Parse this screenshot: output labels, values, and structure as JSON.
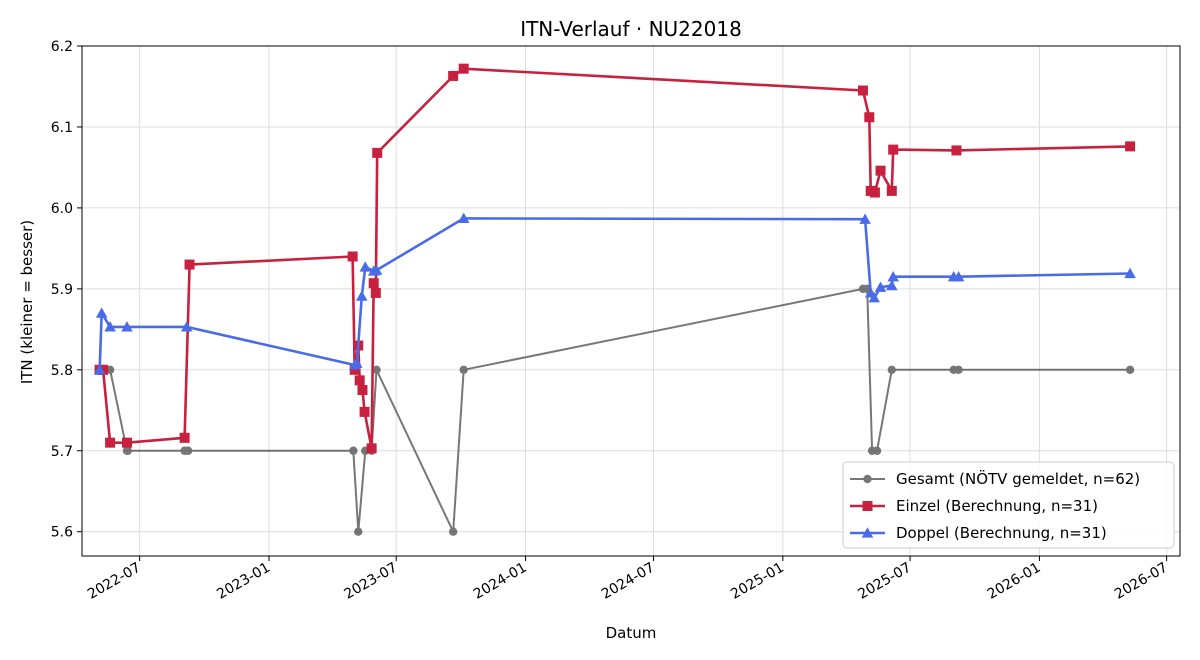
{
  "chart_data": {
    "type": "line",
    "title": "ITN-Verlauf · NU22018",
    "xlabel": "Datum",
    "ylabel": "ITN  (kleiner = besser)",
    "xlim": [
      "2022-04-10",
      "2026-07-20"
    ],
    "ylim": [
      5.57,
      6.2
    ],
    "x_ticks": [
      "2022-07-01",
      "2023-01-01",
      "2023-07-01",
      "2024-01-01",
      "2024-07-01",
      "2025-01-01",
      "2025-07-01",
      "2026-01-01",
      "2026-07-01"
    ],
    "x_tick_labels": [
      "2022-07",
      "2023-01",
      "2023-07",
      "2024-01",
      "2024-07",
      "2025-01",
      "2025-07",
      "2026-01",
      "2026-07"
    ],
    "y_ticks": [
      5.6,
      5.7,
      5.8,
      5.9,
      6.0,
      6.1,
      6.2
    ],
    "y_tick_labels": [
      "5.6",
      "5.7",
      "5.8",
      "5.9",
      "6.0",
      "6.1",
      "6.2"
    ],
    "grid": true,
    "legend_position": "lower-right",
    "series": [
      {
        "name": "Gesamt (NÖTV gemeldet, n=62)",
        "color": "#444444",
        "marker": "circle",
        "points": [
          [
            "2022-05-08",
            5.8
          ],
          [
            "2022-05-10",
            5.8
          ],
          [
            "2022-05-20",
            5.8
          ],
          [
            "2022-06-13",
            5.7
          ],
          [
            "2022-06-14",
            5.7
          ],
          [
            "2022-09-03",
            5.7
          ],
          [
            "2022-09-08",
            5.7
          ],
          [
            "2023-05-01",
            5.7
          ],
          [
            "2023-05-08",
            5.6
          ],
          [
            "2023-05-18",
            5.7
          ],
          [
            "2023-05-27",
            5.7
          ],
          [
            "2023-06-03",
            5.8
          ],
          [
            "2023-09-20",
            5.6
          ],
          [
            "2023-10-05",
            5.8
          ],
          [
            "2025-04-25",
            5.9
          ],
          [
            "2025-05-01",
            5.9
          ],
          [
            "2025-05-08",
            5.7
          ],
          [
            "2025-05-15",
            5.7
          ],
          [
            "2025-06-05",
            5.8
          ],
          [
            "2025-09-01",
            5.8
          ],
          [
            "2025-09-08",
            5.8
          ],
          [
            "2026-05-10",
            5.8
          ]
        ]
      },
      {
        "name": "Einzel (Berechnung, n=31)",
        "color": "#c8203f",
        "marker": "square",
        "points": [
          [
            "2022-05-05",
            5.8
          ],
          [
            "2022-05-10",
            5.8
          ],
          [
            "2022-05-20",
            5.71
          ],
          [
            "2022-06-13",
            5.71
          ],
          [
            "2022-09-03",
            5.716
          ],
          [
            "2022-09-10",
            5.93
          ],
          [
            "2023-04-30",
            5.94
          ],
          [
            "2023-05-03",
            5.8
          ],
          [
            "2023-05-08",
            5.83
          ],
          [
            "2023-05-10",
            5.787
          ],
          [
            "2023-05-14",
            5.775
          ],
          [
            "2023-05-17",
            5.748
          ],
          [
            "2023-05-27",
            5.703
          ],
          [
            "2023-05-30",
            5.907
          ],
          [
            "2023-06-02",
            5.895
          ],
          [
            "2023-06-04",
            6.068
          ],
          [
            "2023-09-20",
            6.163
          ],
          [
            "2023-10-05",
            6.172
          ],
          [
            "2025-04-25",
            6.145
          ],
          [
            "2025-05-04",
            6.112
          ],
          [
            "2025-05-06",
            6.021
          ],
          [
            "2025-05-12",
            6.019
          ],
          [
            "2025-05-20",
            6.046
          ],
          [
            "2025-06-05",
            6.021
          ],
          [
            "2025-06-07",
            6.072
          ],
          [
            "2025-09-05",
            6.071
          ],
          [
            "2026-05-10",
            6.076
          ]
        ]
      },
      {
        "name": "Doppel (Berechnung, n=31)",
        "color": "#4a6be8",
        "marker": "triangle",
        "points": [
          [
            "2022-05-05",
            5.8
          ],
          [
            "2022-05-08",
            5.87
          ],
          [
            "2022-05-20",
            5.853
          ],
          [
            "2022-06-13",
            5.853
          ],
          [
            "2022-09-06",
            5.853
          ],
          [
            "2023-05-03",
            5.806
          ],
          [
            "2023-05-06",
            5.808
          ],
          [
            "2023-05-13",
            5.891
          ],
          [
            "2023-05-18",
            5.927
          ],
          [
            "2023-05-30",
            5.922
          ],
          [
            "2023-06-03",
            5.923
          ],
          [
            "2023-10-05",
            5.987
          ],
          [
            "2025-04-28",
            5.986
          ],
          [
            "2025-05-06",
            5.895
          ],
          [
            "2025-05-11",
            5.889
          ],
          [
            "2025-05-20",
            5.902
          ],
          [
            "2025-06-05",
            5.904
          ],
          [
            "2025-06-07",
            5.915
          ],
          [
            "2025-09-01",
            5.915
          ],
          [
            "2025-09-08",
            5.915
          ],
          [
            "2026-05-10",
            5.919
          ]
        ]
      }
    ]
  }
}
